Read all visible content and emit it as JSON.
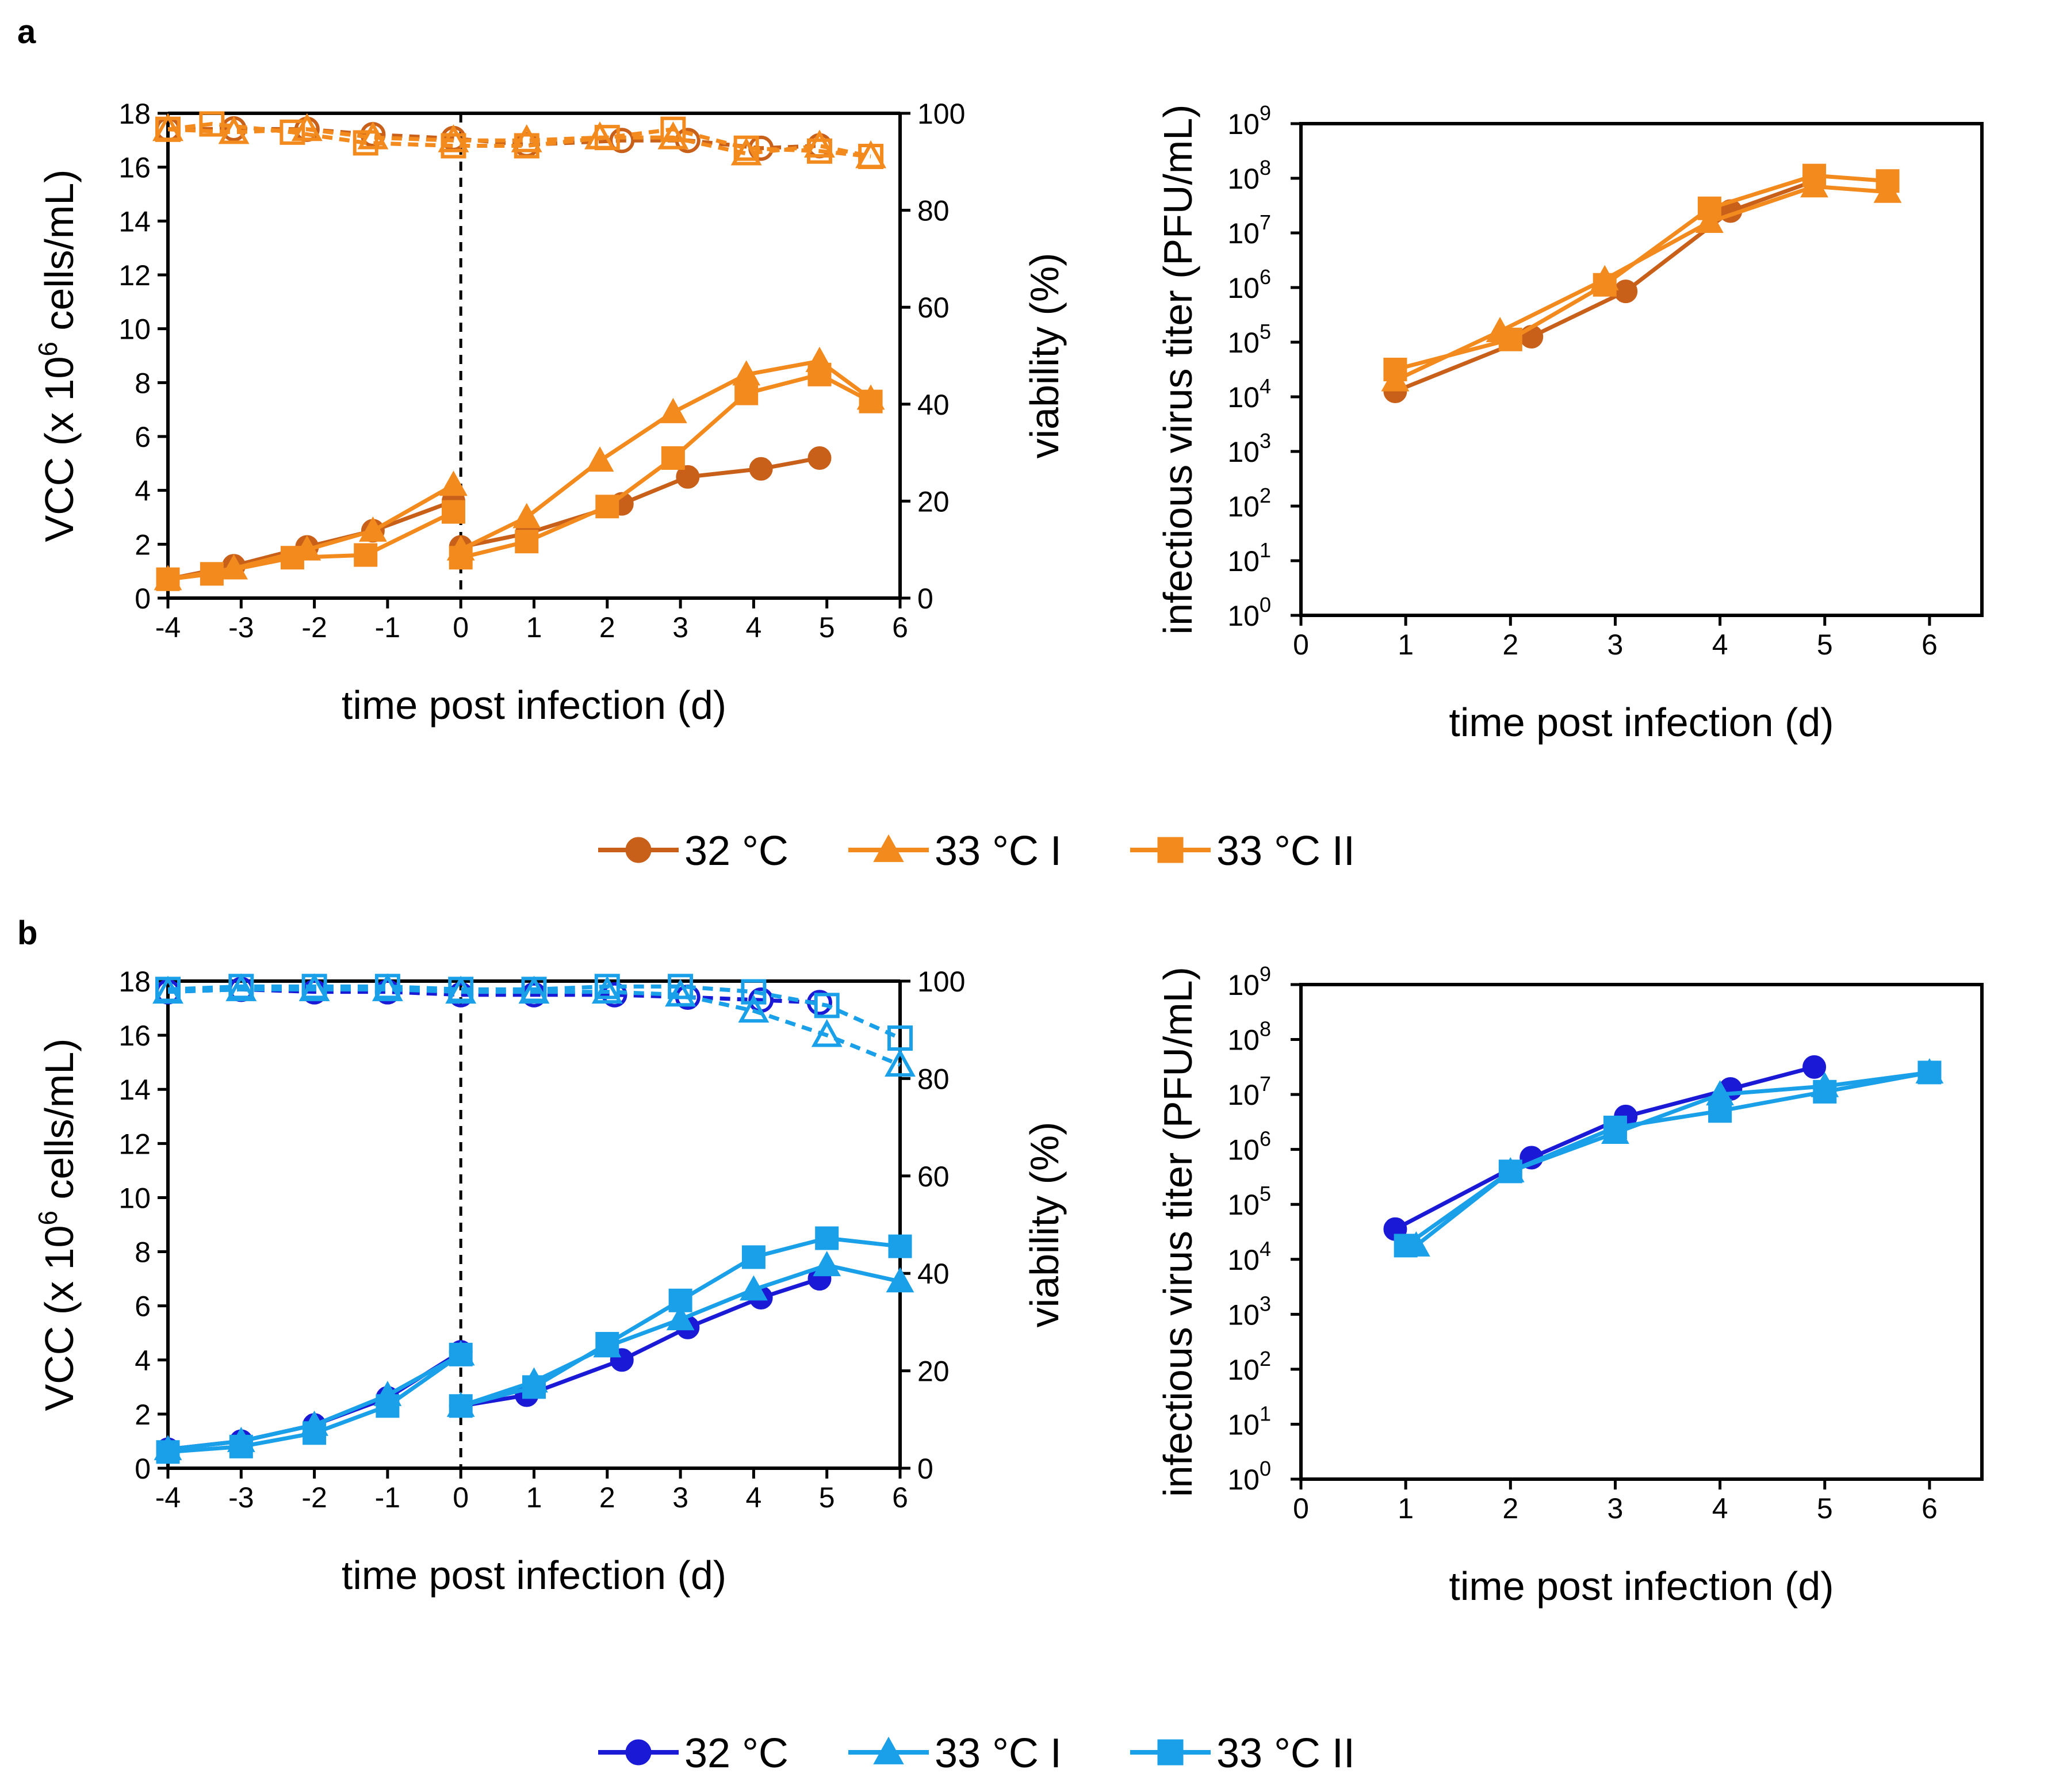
{
  "panel_labels": [
    "a",
    "b"
  ],
  "colors": {
    "a": {
      "s32": "#c8601a",
      "s33I": "#f28a1e",
      "s33II": "#f28a1e"
    },
    "b": {
      "s32": "#1a1ad6",
      "s33I": "#1aa0e8",
      "s33II": "#1aa0e8"
    }
  },
  "legend": {
    "a": [
      {
        "label": "32 °C",
        "marker": "circle"
      },
      {
        "label": "33 °C I",
        "marker": "triangle"
      },
      {
        "label": "33 °C II",
        "marker": "square"
      }
    ],
    "b": [
      {
        "label": "32 °C",
        "marker": "circle"
      },
      {
        "label": "33 °C I",
        "marker": "triangle"
      },
      {
        "label": "33 °C II",
        "marker": "square"
      }
    ]
  },
  "chart_data": [
    {
      "id": "a_growth",
      "type": "line",
      "xlabel": "time post infection (d)",
      "ylabel": "VCC (x 10^6 cells/mL)",
      "ylabel_right": "viability (%)",
      "xlim": [
        -4,
        6
      ],
      "ylim": [
        0,
        18
      ],
      "ylim_right": [
        0,
        100
      ],
      "xticks": [
        "-4",
        "-3",
        "-2",
        "-1",
        "0",
        "1",
        "2",
        "3",
        "4",
        "5",
        "6"
      ],
      "yticks": [
        "0",
        "2",
        "4",
        "6",
        "8",
        "10",
        "12",
        "14",
        "16",
        "18"
      ],
      "yticks_right": [
        "0",
        "20",
        "40",
        "60",
        "80",
        "100"
      ],
      "vline_x": 0,
      "series": [
        {
          "name": "32 °C",
          "marker": "circle",
          "style": "solid",
          "segments": [
            {
              "x": [
                -4,
                -3.1,
                -2.1,
                -1.2,
                -0.1
              ],
              "y": [
                0.7,
                1.2,
                1.9,
                2.5,
                3.6
              ]
            },
            {
              "x": [
                0,
                0.9,
                2.2,
                3.1,
                4.1,
                4.9
              ],
              "y": [
                1.9,
                2.4,
                3.5,
                4.5,
                4.8,
                5.2
              ]
            }
          ]
        },
        {
          "name": "33 °C I",
          "marker": "triangle",
          "style": "solid",
          "segments": [
            {
              "x": [
                -4,
                -3.1,
                -2.1,
                -1.2,
                -0.1
              ],
              "y": [
                0.7,
                1.1,
                1.8,
                2.5,
                4.2
              ]
            },
            {
              "x": [
                0,
                0.9,
                1.9,
                2.9,
                3.9,
                4.9,
                5.6
              ],
              "y": [
                1.8,
                3.0,
                5.1,
                6.9,
                8.3,
                8.8,
                7.4
              ]
            }
          ]
        },
        {
          "name": "33 °C II",
          "marker": "square",
          "style": "solid",
          "segments": [
            {
              "x": [
                -4,
                -3.4,
                -2.3,
                -1.3,
                -0.1
              ],
              "y": [
                0.7,
                0.9,
                1.5,
                1.6,
                3.2
              ]
            },
            {
              "x": [
                0,
                0.9,
                2.0,
                2.9,
                3.9,
                4.9,
                5.6
              ],
              "y": [
                1.5,
                2.1,
                3.4,
                5.2,
                7.6,
                8.3,
                7.3
              ]
            }
          ]
        },
        {
          "name": "32 °C viability",
          "axis": "right",
          "marker": "circle-open",
          "style": "dashed",
          "segments": [
            {
              "x": [
                -4,
                -3.1,
                -2.1,
                -1.2,
                -0.1,
                0.9,
                2.2,
                3.1,
                4.1,
                4.9
              ],
              "y": [
                96.7,
                96.8,
                96.7,
                95.6,
                94.8,
                93.5,
                94.4,
                94.4,
                92.8,
                93.3
              ]
            }
          ]
        },
        {
          "name": "33 °C I viability",
          "axis": "right",
          "marker": "triangle-open",
          "style": "dashed",
          "segments": [
            {
              "x": [
                -4,
                -3.1,
                -2.1,
                -1.2,
                -0.1,
                0.9,
                1.9,
                2.9,
                3.9,
                4.9,
                5.6
              ],
              "y": [
                96.7,
                96.1,
                96.7,
                95.0,
                94.4,
                94.4,
                95.0,
                95.0,
                91.7,
                93.3,
                91.1
              ]
            }
          ]
        },
        {
          "name": "33 °C II viability",
          "axis": "right",
          "marker": "square-open",
          "style": "dashed",
          "segments": [
            {
              "x": [
                -4,
                -3.4,
                -2.3,
                -1.3,
                -0.1,
                0.9,
                2.0,
                2.9,
                3.9,
                4.9,
                5.6
              ],
              "y": [
                96.7,
                97.8,
                96.1,
                93.9,
                93.3,
                93.3,
                95.0,
                96.7,
                92.8,
                92.2,
                91.1
              ]
            }
          ]
        }
      ]
    },
    {
      "id": "a_titer",
      "type": "line",
      "xlabel": "time post infection (d)",
      "ylabel": "infectious virus titer (PFU/mL)",
      "xlim": [
        0,
        6.5
      ],
      "ylim_log10": [
        0,
        9
      ],
      "xticks": [
        "0",
        "1",
        "2",
        "3",
        "4",
        "5",
        "6"
      ],
      "ytick_base": "10",
      "ytick_exponents": [
        "0",
        "1",
        "2",
        "3",
        "4",
        "5",
        "6",
        "7",
        "8",
        "9"
      ],
      "series": [
        {
          "name": "32 °C",
          "marker": "circle",
          "x": [
            0.9,
            2.2,
            3.1,
            4.1,
            4.9
          ],
          "log10_y": [
            4.1,
            5.1,
            5.93,
            7.4,
            7.95
          ]
        },
        {
          "name": "33 °C I",
          "marker": "triangle",
          "x": [
            0.9,
            1.9,
            2.9,
            3.9,
            4.9,
            5.6
          ],
          "log10_y": [
            4.3,
            5.2,
            6.15,
            7.2,
            7.85,
            7.75
          ]
        },
        {
          "name": "33 °C II",
          "marker": "square",
          "x": [
            0.9,
            2.0,
            2.9,
            3.9,
            4.9,
            5.6
          ],
          "log10_y": [
            4.5,
            5.05,
            6.05,
            7.45,
            8.05,
            7.95
          ]
        }
      ]
    },
    {
      "id": "b_growth",
      "type": "line",
      "xlabel": "time post infection (d)",
      "ylabel": "VCC (x 10^6 cells/mL)",
      "ylabel_right": "viability (%)",
      "xlim": [
        -4,
        6
      ],
      "ylim": [
        0,
        18
      ],
      "ylim_right": [
        0,
        100
      ],
      "xticks": [
        "-4",
        "-3",
        "-2",
        "-1",
        "0",
        "1",
        "2",
        "3",
        "4",
        "5",
        "6"
      ],
      "yticks": [
        "0",
        "2",
        "4",
        "6",
        "8",
        "10",
        "12",
        "14",
        "16",
        "18"
      ],
      "yticks_right": [
        "0",
        "20",
        "40",
        "60",
        "80",
        "100"
      ],
      "vline_x": 0,
      "series": [
        {
          "name": "32 °C",
          "marker": "circle",
          "style": "solid",
          "segments": [
            {
              "x": [
                -4,
                -3,
                -2,
                -1,
                0
              ],
              "y": [
                0.7,
                1.0,
                1.6,
                2.6,
                4.3
              ]
            },
            {
              "x": [
                0,
                0.9,
                2.2,
                3.1,
                4.1,
                4.9
              ],
              "y": [
                2.3,
                2.7,
                4.0,
                5.2,
                6.3,
                7.0
              ]
            }
          ]
        },
        {
          "name": "33 °C I",
          "marker": "triangle",
          "style": "solid",
          "segments": [
            {
              "x": [
                -4,
                -3,
                -2,
                -1,
                0
              ],
              "y": [
                0.7,
                1.0,
                1.6,
                2.7,
                4.2
              ]
            },
            {
              "x": [
                0,
                1.0,
                2.0,
                3.0,
                4.0,
                5.0,
                6.0
              ],
              "y": [
                2.3,
                3.2,
                4.5,
                5.5,
                6.6,
                7.5,
                6.9
              ]
            }
          ]
        },
        {
          "name": "33 °C II",
          "marker": "square",
          "style": "solid",
          "segments": [
            {
              "x": [
                -4,
                -3,
                -2,
                -1,
                0
              ],
              "y": [
                0.6,
                0.8,
                1.3,
                2.3,
                4.2
              ]
            },
            {
              "x": [
                0,
                1.0,
                2.0,
                3.0,
                4.0,
                5.0,
                6.0
              ],
              "y": [
                2.3,
                3.0,
                4.6,
                6.2,
                7.8,
                8.5,
                8.2
              ]
            }
          ]
        },
        {
          "name": "32 °C viability",
          "axis": "right",
          "marker": "circle-open",
          "style": "dashed",
          "segments": [
            {
              "x": [
                -4,
                -3,
                -2,
                -1,
                0,
                1,
                2.1,
                3.1,
                4.1,
                4.9
              ],
              "y": [
                97.8,
                98.3,
                97.8,
                97.8,
                97.2,
                97.2,
                97.2,
                96.7,
                96.1,
                95.6
              ]
            }
          ]
        },
        {
          "name": "33 °C I viability",
          "axis": "right",
          "marker": "triangle-open",
          "style": "dashed",
          "segments": [
            {
              "x": [
                -4,
                -3,
                -2,
                -1,
                0,
                1,
                2,
                3,
                4,
                5,
                6
              ],
              "y": [
                97.8,
                98.3,
                98.3,
                98.3,
                97.8,
                97.8,
                97.8,
                97.2,
                93.9,
                88.9,
                82.8
              ]
            }
          ]
        },
        {
          "name": "33 °C II viability",
          "axis": "right",
          "marker": "square-open",
          "style": "dashed",
          "segments": [
            {
              "x": [
                -4,
                -3,
                -2,
                -1,
                0,
                1,
                2,
                3,
                4,
                5,
                6
              ],
              "y": [
                98.3,
                98.9,
                98.9,
                98.9,
                98.3,
                98.3,
                98.9,
                98.9,
                97.8,
                95.0,
                88.3
              ]
            }
          ]
        }
      ]
    },
    {
      "id": "b_titer",
      "type": "line",
      "xlabel": "time post infection (d)",
      "ylabel": "infectious virus titer (PFU/mL)",
      "xlim": [
        0,
        6.5
      ],
      "ylim_log10": [
        0,
        9
      ],
      "xticks": [
        "0",
        "1",
        "2",
        "3",
        "4",
        "5",
        "6"
      ],
      "ytick_base": "10",
      "ytick_exponents": [
        "0",
        "1",
        "2",
        "3",
        "4",
        "5",
        "6",
        "7",
        "8",
        "9"
      ],
      "series": [
        {
          "name": "32 °C",
          "marker": "circle",
          "x": [
            0.9,
            2.2,
            3.1,
            4.1,
            4.9
          ],
          "log10_y": [
            4.55,
            5.85,
            6.6,
            7.1,
            7.5
          ]
        },
        {
          "name": "33 °C I",
          "marker": "triangle",
          "x": [
            1.1,
            2.0,
            3.0,
            4.0,
            5.0,
            6.0
          ],
          "log10_y": [
            4.25,
            5.6,
            6.3,
            7.0,
            7.15,
            7.4
          ]
        },
        {
          "name": "33 °C II",
          "marker": "square",
          "x": [
            1.0,
            2.0,
            3.0,
            4.0,
            5.0,
            6.0
          ],
          "log10_y": [
            4.25,
            5.6,
            6.4,
            6.7,
            7.05,
            7.4
          ]
        }
      ]
    }
  ]
}
